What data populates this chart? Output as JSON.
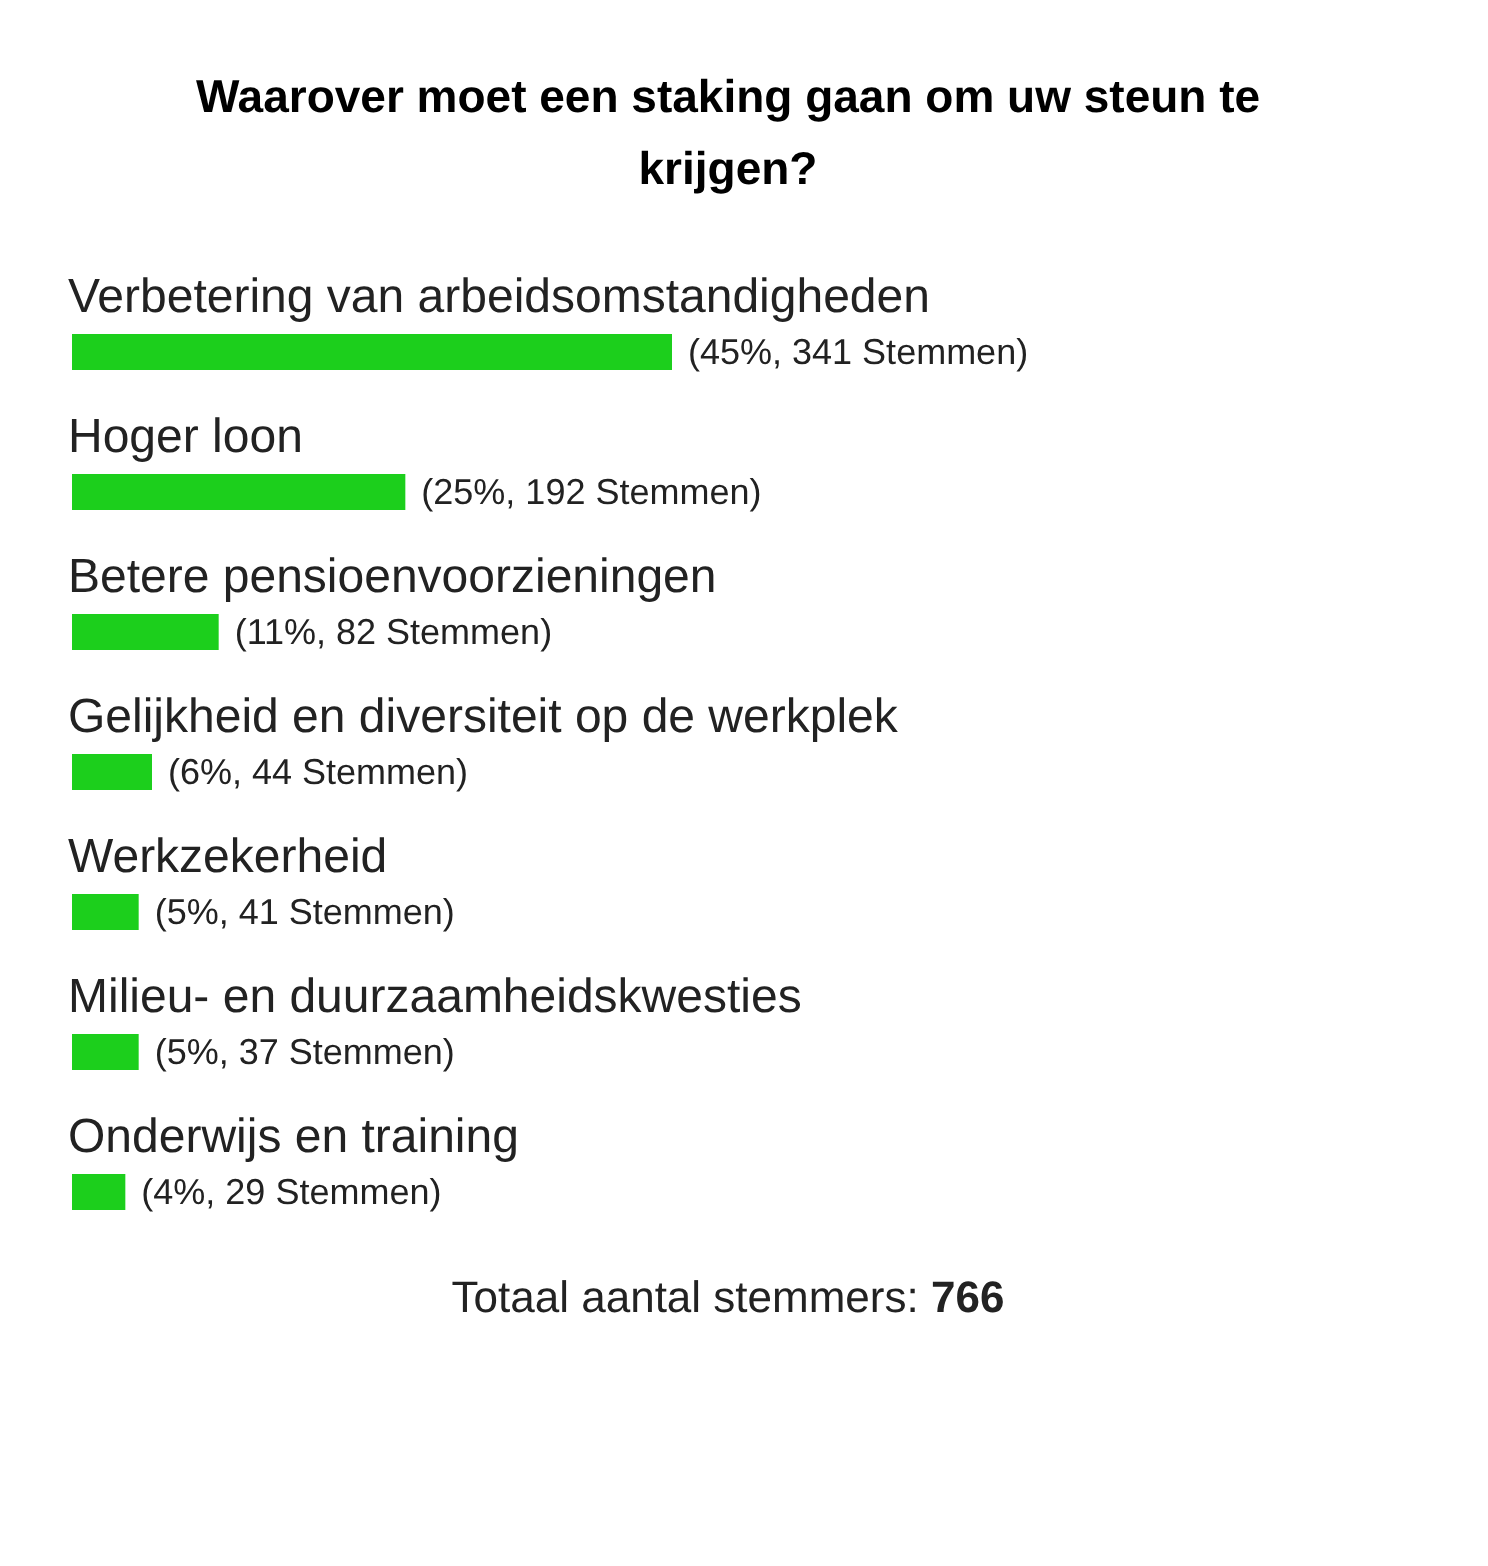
{
  "chart_data": {
    "type": "bar",
    "orientation": "horizontal",
    "title": "Waarover moet een staking gaan om uw steun te krijgen?",
    "categories": [
      "Verbetering van arbeidsomstandigheden",
      "Hoger loon",
      "Betere pensioenvoorzieningen",
      "Gelijkheid en diversiteit op de werkplek",
      "Werkzekerheid",
      "Milieu- en duurzaamheidskwesties",
      "Onderwijs en training"
    ],
    "values": [
      45,
      25,
      11,
      6,
      5,
      5,
      4
    ],
    "value_labels": [
      "(45%, 341 Stemmen)",
      "(25%, 192 Stemmen)",
      "(11%, 82 Stemmen)",
      "(6%, 44 Stemmen)",
      "(5%, 41 Stemmen)",
      "(5%, 37 Stemmen)",
      "(4%, 29 Stemmen)"
    ],
    "color": "#1ccf1c",
    "annotations": [
      "Totaal aantal stemmers: 766"
    ]
  }
}
